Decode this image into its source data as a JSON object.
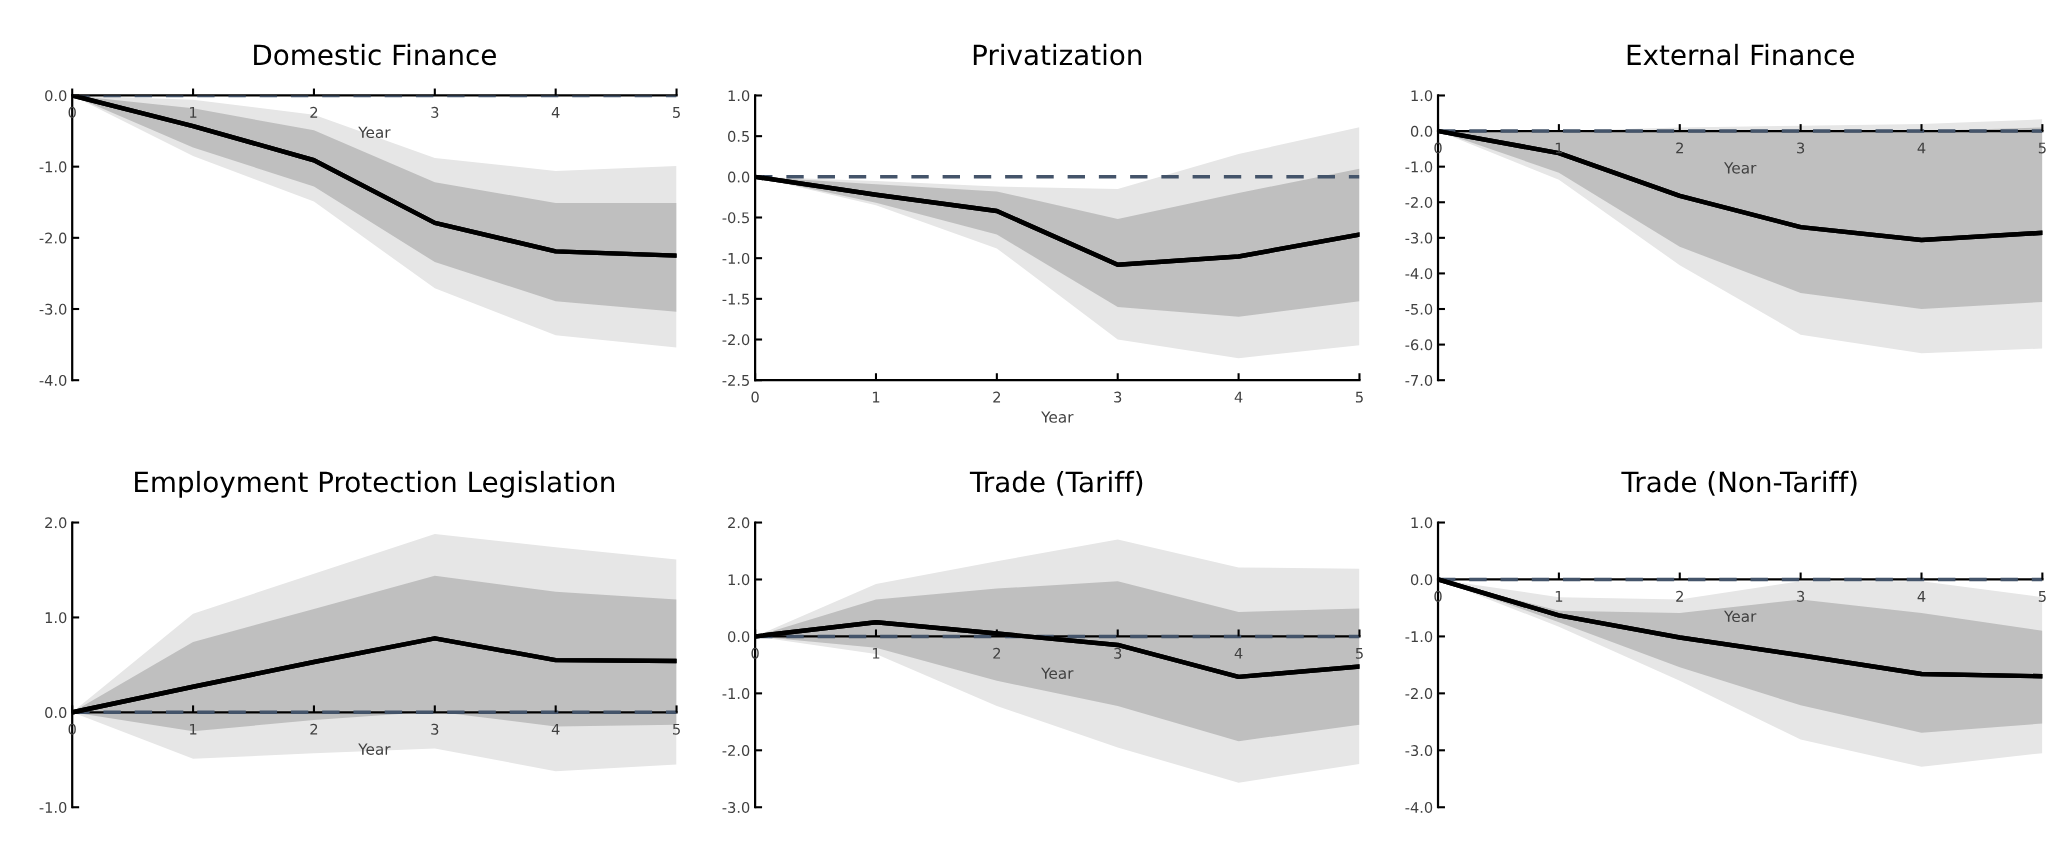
{
  "chart_data": [
    {
      "type": "line",
      "title": "Domestic Finance",
      "xlabel": "Year",
      "x": [
        0,
        1,
        2,
        3,
        4,
        5
      ],
      "xlim": [
        0,
        5
      ],
      "xticks": [
        0,
        1,
        2,
        3,
        4,
        5
      ],
      "ylim": [
        -4,
        0
      ],
      "yticks": [
        {
          "value": -4,
          "label": "-4.0"
        },
        {
          "value": -3,
          "label": "-3.0"
        },
        {
          "value": -2,
          "label": "-2.0"
        },
        {
          "value": -1,
          "label": "-1.0"
        },
        {
          "value": 0,
          "label": "0.0"
        }
      ],
      "grid": false,
      "legend": false,
      "ref_lines": [
        {
          "axis": "y",
          "value": 0,
          "color": "#44546a",
          "line_style": "dashed"
        }
      ],
      "series": [
        {
          "color": "#000000",
          "values": [
            0,
            -0.43,
            -0.91,
            -1.79,
            -2.19,
            -2.25
          ],
          "lower": [
            0,
            -0.85,
            -1.49,
            -2.71,
            -3.37,
            -3.54
          ],
          "upper": [
            0,
            -0.06,
            -0.27,
            -0.88,
            -1.06,
            -0.99
          ]
        },
        {
          "color": "#000000",
          "values": [
            0,
            -0.43,
            -0.91,
            -1.79,
            -2.19,
            -2.25
          ],
          "lower": [
            0,
            -0.73,
            -1.28,
            -2.34,
            -2.89,
            -3.04
          ],
          "upper": [
            0,
            -0.18,
            -0.49,
            -1.22,
            -1.51,
            -1.51
          ]
        }
      ]
    },
    {
      "type": "line",
      "title": "Privatization",
      "xlabel": "Year",
      "x": [
        0,
        1,
        2,
        3,
        4,
        5
      ],
      "xlim": [
        0,
        5
      ],
      "xticks": [
        0,
        1,
        2,
        3,
        4,
        5
      ],
      "ylim": [
        -2.5,
        1
      ],
      "yticks": [
        {
          "value": -2.5,
          "label": "-2.5"
        },
        {
          "value": -2,
          "label": "-2.0"
        },
        {
          "value": -1.5,
          "label": "-1.5"
        },
        {
          "value": -1,
          "label": "-1.0"
        },
        {
          "value": -0.5,
          "label": "-0.5"
        },
        {
          "value": 0,
          "label": "0.0"
        },
        {
          "value": 0.5,
          "label": "0.5"
        },
        {
          "value": 1,
          "label": "1.0"
        }
      ],
      "grid": false,
      "legend": false,
      "ref_lines": [
        {
          "axis": "y",
          "value": 0,
          "color": "#44546a",
          "line_style": "dashed"
        }
      ],
      "series": [
        {
          "color": "#000000",
          "values": [
            0,
            -0.22,
            -0.42,
            -1.08,
            -0.98,
            -0.71
          ],
          "lower": [
            0,
            -0.35,
            -0.88,
            -2.0,
            -2.23,
            -2.07
          ],
          "upper": [
            0,
            -0.05,
            -0.12,
            -0.15,
            0.28,
            0.61
          ]
        },
        {
          "color": "#000000",
          "values": [
            0,
            -0.22,
            -0.42,
            -1.08,
            -0.98,
            -0.71
          ],
          "lower": [
            0,
            -0.32,
            -0.71,
            -1.6,
            -1.72,
            -1.53
          ],
          "upper": [
            0,
            -0.09,
            -0.18,
            -0.52,
            -0.2,
            0.1
          ]
        }
      ]
    },
    {
      "type": "line",
      "title": "External Finance",
      "xlabel": "Year",
      "x": [
        0,
        1,
        2,
        3,
        4,
        5
      ],
      "xlim": [
        0,
        5
      ],
      "xticks": [
        0,
        1,
        2,
        3,
        4,
        5
      ],
      "ylim": [
        -7,
        1
      ],
      "yticks": [
        {
          "value": -7,
          "label": "-7.0"
        },
        {
          "value": -6,
          "label": "-6.0"
        },
        {
          "value": -5,
          "label": "-5.0"
        },
        {
          "value": -4,
          "label": "-4.0"
        },
        {
          "value": -3,
          "label": "-3.0"
        },
        {
          "value": -2,
          "label": "-2.0"
        },
        {
          "value": -1,
          "label": "-1.0"
        },
        {
          "value": 0,
          "label": "0.0"
        },
        {
          "value": 1,
          "label": "1.0"
        }
      ],
      "grid": false,
      "legend": false,
      "ref_lines": [
        {
          "axis": "y",
          "value": 0,
          "color": "#44546a",
          "line_style": "dashed"
        }
      ],
      "series": [
        {
          "color": "#000000",
          "values": [
            0,
            -0.62,
            -1.82,
            -2.7,
            -3.06,
            -2.86
          ],
          "lower": [
            0,
            -1.37,
            -3.77,
            -5.72,
            -6.24,
            -6.11
          ],
          "upper": [
            0,
            0.0,
            0.1,
            0.15,
            0.2,
            0.33
          ]
        },
        {
          "color": "#000000",
          "values": [
            0,
            -0.62,
            -1.82,
            -2.7,
            -3.06,
            -2.86
          ],
          "lower": [
            0,
            -1.17,
            -3.25,
            -4.55,
            -5.0,
            -4.8
          ],
          "upper": [
            0,
            -0.05,
            0,
            0,
            0,
            0.1
          ]
        }
      ]
    },
    {
      "type": "line",
      "title": "Employment Protection Legislation",
      "xlabel": "Year",
      "x": [
        0,
        1,
        2,
        3,
        4,
        5
      ],
      "xlim": [
        0,
        5
      ],
      "xticks": [
        0,
        1,
        2,
        3,
        4,
        5
      ],
      "ylim": [
        -1,
        2
      ],
      "yticks": [
        {
          "value": -1,
          "label": "-1.0"
        },
        {
          "value": 0,
          "label": "0.0"
        },
        {
          "value": 1,
          "label": "1.0"
        },
        {
          "value": 2,
          "label": "2.0"
        }
      ],
      "grid": false,
      "legend": false,
      "ref_lines": [
        {
          "axis": "y",
          "value": 0,
          "color": "#44546a",
          "line_style": "dashed"
        }
      ],
      "series": [
        {
          "color": "#000000",
          "values": [
            0,
            0.27,
            0.53,
            0.78,
            0.55,
            0.54
          ],
          "lower": [
            0,
            -0.49,
            -0.43,
            -0.38,
            -0.62,
            -0.55
          ],
          "upper": [
            0,
            1.04,
            1.46,
            1.88,
            1.74,
            1.61
          ]
        },
        {
          "color": "#000000",
          "values": [
            0,
            0.27,
            0.53,
            0.78,
            0.55,
            0.54
          ],
          "lower": [
            0,
            -0.2,
            -0.08,
            0.01,
            -0.15,
            -0.13
          ],
          "upper": [
            0,
            0.74,
            1.09,
            1.44,
            1.27,
            1.19
          ]
        }
      ]
    },
    {
      "type": "line",
      "title": "Trade (Tariff)",
      "xlabel": "Year",
      "x": [
        0,
        1,
        2,
        3,
        4,
        5
      ],
      "xlim": [
        0,
        5
      ],
      "xticks": [
        0,
        1,
        2,
        3,
        4,
        5
      ],
      "ylim": [
        -3,
        2
      ],
      "yticks": [
        {
          "value": -3,
          "label": "-3.0"
        },
        {
          "value": -2,
          "label": "-2.0"
        },
        {
          "value": -1,
          "label": "-1.0"
        },
        {
          "value": 0,
          "label": "0.0"
        },
        {
          "value": 1,
          "label": "1.0"
        },
        {
          "value": 2,
          "label": "2.0"
        }
      ],
      "grid": false,
      "legend": false,
      "ref_lines": [
        {
          "axis": "y",
          "value": 0,
          "color": "#44546a",
          "line_style": "dashed"
        }
      ],
      "series": [
        {
          "color": "#000000",
          "values": [
            0,
            0.25,
            0.05,
            -0.15,
            -0.71,
            -0.53
          ],
          "lower": [
            0,
            -0.31,
            -1.22,
            -1.95,
            -2.57,
            -2.24
          ],
          "upper": [
            0,
            0.92,
            1.32,
            1.7,
            1.21,
            1.19
          ]
        },
        {
          "color": "#000000",
          "values": [
            0,
            0.25,
            0.05,
            -0.15,
            -0.71,
            -0.53
          ],
          "lower": [
            0,
            -0.2,
            -0.78,
            -1.22,
            -1.84,
            -1.55
          ],
          "upper": [
            0,
            0.65,
            0.84,
            0.97,
            0.43,
            0.49
          ]
        }
      ]
    },
    {
      "type": "line",
      "title": "Trade (Non-Tariff)",
      "xlabel": "Year",
      "x": [
        0,
        1,
        2,
        3,
        4,
        5
      ],
      "xlim": [
        0,
        5
      ],
      "xticks": [
        0,
        1,
        2,
        3,
        4,
        5
      ],
      "ylim": [
        -4,
        1
      ],
      "yticks": [
        {
          "value": -4,
          "label": "-4.0"
        },
        {
          "value": -3,
          "label": "-3.0"
        },
        {
          "value": -2,
          "label": "-2.0"
        },
        {
          "value": -1,
          "label": "-1.0"
        },
        {
          "value": 0,
          "label": "0.0"
        },
        {
          "value": 1,
          "label": "1.0"
        }
      ],
      "grid": false,
      "legend": false,
      "ref_lines": [
        {
          "axis": "y",
          "value": 0,
          "color": "#44546a",
          "line_style": "dashed"
        }
      ],
      "series": [
        {
          "color": "#000000",
          "values": [
            0,
            -0.63,
            -1.02,
            -1.33,
            -1.66,
            -1.7
          ],
          "lower": [
            0,
            -0.83,
            -1.78,
            -2.81,
            -3.29,
            -3.05
          ],
          "upper": [
            0,
            -0.31,
            -0.35,
            -0.03,
            -0.03,
            -0.31
          ]
        },
        {
          "color": "#000000",
          "values": [
            0,
            -0.63,
            -1.02,
            -1.33,
            -1.66,
            -1.7
          ],
          "lower": [
            0,
            -0.75,
            -1.54,
            -2.21,
            -2.69,
            -2.53
          ],
          "upper": [
            0,
            -0.55,
            -0.59,
            -0.35,
            -0.59,
            -0.9
          ]
        }
      ]
    }
  ]
}
